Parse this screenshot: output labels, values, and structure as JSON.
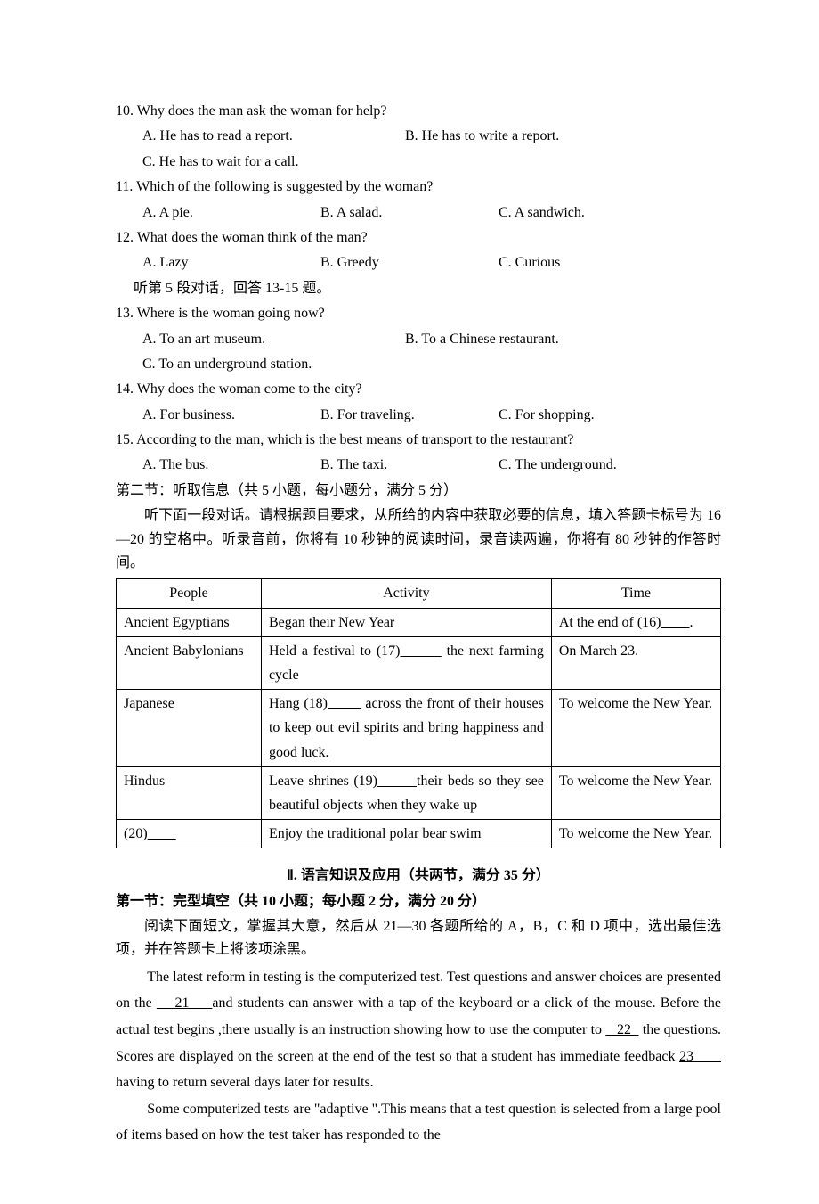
{
  "questions": [
    {
      "num": "10.",
      "text": "Why does the man ask the woman for help?",
      "layout": "ab_c",
      "a": "A. He has to read a report.",
      "b": "B. He has to write a report.",
      "c": "C. He has to wait for a call."
    },
    {
      "num": "11.",
      "text": "Which of the following is suggested by the woman?",
      "layout": "abc",
      "a": "A. A pie.",
      "b": "B. A salad.",
      "c": "C. A sandwich."
    },
    {
      "num": "12.",
      "text": "What does the woman think of the man?",
      "layout": "abc",
      "a": "A. Lazy",
      "b": "B. Greedy",
      "c": "C. Curious",
      "after_note": "听第 5 段对话，回答 13-15 题。"
    },
    {
      "num": "13.",
      "text": "Where is the woman going now?",
      "layout": "ab_c",
      "a": "A. To an art museum.",
      "b": "B. To a Chinese restaurant.",
      "c": "C. To an underground station."
    },
    {
      "num": "14.",
      "text": "Why does the woman come to the city?",
      "layout": "abc",
      "a": "A. For business.",
      "b": "B. For traveling.",
      "c": "C. For shopping."
    },
    {
      "num": "15.",
      "text": "According to the man, which is the best means of transport to the restaurant?",
      "layout": "abc",
      "a": "A. The bus.",
      "b": "B. The taxi.",
      "c": "C. The underground."
    }
  ],
  "section2_heading": "第二节：听取信息（共 5 小题，每小题分，满分 5 分）",
  "section2_para": "听下面一段对话。请根据题目要求，从所给的内容中获取必要的信息，填入答题卡标号为 16—20 的空格中。听录音前，你将有 10 秒钟的阅读时间，录音读两遍，你将有 80 秒钟的作答时间。",
  "table": {
    "headers": {
      "people": "People",
      "activity": "Activity",
      "time": "Time"
    },
    "rows": [
      {
        "people": "Ancient Egyptians",
        "activity_pre": "Began their New Year",
        "time_pre": "At the end of (16)",
        "time_post": "."
      },
      {
        "people": "Ancient Babylonians",
        "activity_pre": "Held a festival to (17)",
        "activity_post": " the next farming cycle",
        "time_pre": "On March 23."
      },
      {
        "people": "Japanese",
        "activity_pre": "Hang (18)",
        "activity_post": " across the front of their houses to keep out evil spirits and bring happiness and good luck.",
        "time_pre": "To welcome the New Year."
      },
      {
        "people": "Hindus",
        "activity_pre": "Leave shrines (19)",
        "activity_post": "their beds so they see beautiful objects when they wake up",
        "time_pre": "To welcome the New Year."
      },
      {
        "people_pre": "(20)",
        "activity_pre": "Enjoy the traditional polar bear swim",
        "time_pre": "To welcome the New Year."
      }
    ]
  },
  "partII_title": "Ⅱ. 语言知识及应用（共两节，满分 35 分）",
  "partII_sub": "第一节：完型填空（共 10 小题；每小题 2 分，满分 20 分）",
  "partII_instr": "阅读下面短文，掌握其大意，然后从 21—30 各题所给的 A，B，C 和 D 项中，选出最佳选项，并在答题卡上将该项涂黑。",
  "passage_p1_a": "The latest reform in testing is the computerized test. Test questions and answer choices are presented on the ",
  "blank21": "    21     ",
  "passage_p1_b": "and students can answer with a tap of the keyboard or a click of the mouse. Before the actual test begins ,there usually is an instruction showing how to use the computer to ",
  "blank22": "   22  ",
  "passage_p1_c": "  the questions. Scores are displayed on the screen at the end of the test so that a student has immediate feedback ",
  "blank23": "23       ",
  "passage_p1_d": " having to return several days later for results.",
  "passage_p2": "Some computerized tests are \"adaptive \".This means that a test question is selected from a large pool of items based on how the test taker has responded to the"
}
